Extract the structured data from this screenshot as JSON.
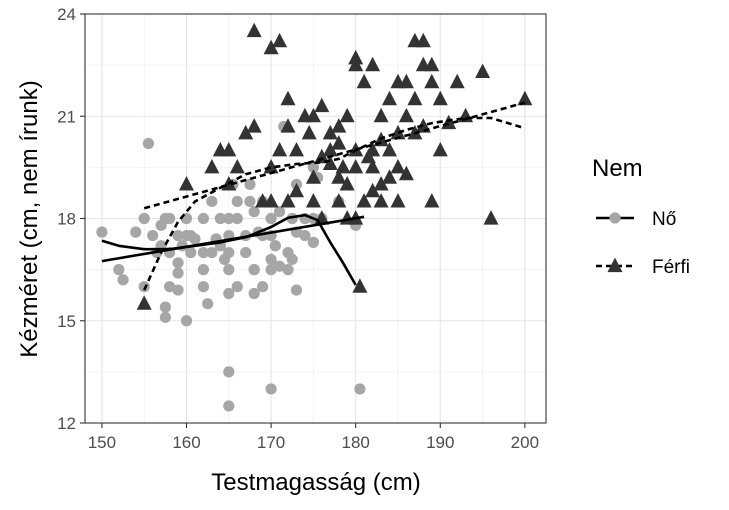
{
  "chart_data": {
    "type": "scatter",
    "xlabel": "Testmagasság (cm)",
    "ylabel": "Kézméret (cm, nem írunk)",
    "xlim": [
      148,
      202.5
    ],
    "ylim": [
      12,
      24
    ],
    "x_ticks": [
      150,
      160,
      170,
      180,
      190,
      200
    ],
    "y_ticks": [
      12,
      15,
      18,
      21,
      24
    ],
    "grid": true,
    "legend": {
      "title": "Nem",
      "position": "right"
    },
    "series": [
      {
        "name": "Nő",
        "marker": "circle",
        "color": "#a6a6a6",
        "line_style": "solid",
        "points": [
          [
            150,
            17.6
          ],
          [
            152,
            16.5
          ],
          [
            152.5,
            16.2
          ],
          [
            154,
            17.6
          ],
          [
            155,
            16
          ],
          [
            155,
            18
          ],
          [
            155.5,
            20.2
          ],
          [
            156,
            17.5
          ],
          [
            156.5,
            17
          ],
          [
            157,
            17.2
          ],
          [
            157,
            17.8
          ],
          [
            157.5,
            15.1
          ],
          [
            157.5,
            15.4
          ],
          [
            157.5,
            18
          ],
          [
            158,
            18
          ],
          [
            158,
            16
          ],
          [
            158,
            17
          ],
          [
            159,
            15.9
          ],
          [
            159,
            16.7
          ],
          [
            159,
            16.4
          ],
          [
            159,
            17.5
          ],
          [
            159.5,
            17.2
          ],
          [
            160,
            15
          ],
          [
            160,
            17.5
          ],
          [
            160,
            18
          ],
          [
            160.5,
            17
          ],
          [
            160.5,
            17.5
          ],
          [
            161,
            17.4
          ],
          [
            162,
            16.5
          ],
          [
            162,
            17
          ],
          [
            162,
            16
          ],
          [
            162,
            18
          ],
          [
            162.5,
            15.5
          ],
          [
            163,
            18.5
          ],
          [
            163,
            17
          ],
          [
            163.5,
            17.4
          ],
          [
            164,
            18
          ],
          [
            164,
            17.2
          ],
          [
            164.5,
            16.8
          ],
          [
            165,
            17
          ],
          [
            165,
            15.8
          ],
          [
            165,
            16.5
          ],
          [
            165,
            18
          ],
          [
            165,
            17.5
          ],
          [
            165,
            13.5
          ],
          [
            165,
            12.5
          ],
          [
            166,
            18.5
          ],
          [
            166,
            16
          ],
          [
            166,
            18
          ],
          [
            167,
            17.5
          ],
          [
            167,
            17
          ],
          [
            167.5,
            19
          ],
          [
            167.5,
            18.5
          ],
          [
            168,
            16.5
          ],
          [
            168,
            16.5
          ],
          [
            168,
            18.2
          ],
          [
            168,
            15.8
          ],
          [
            168.5,
            17.6
          ],
          [
            169,
            17.5
          ],
          [
            169,
            16
          ],
          [
            169,
            18.5
          ],
          [
            170,
            17.5
          ],
          [
            170,
            16.5
          ],
          [
            170,
            18
          ],
          [
            170,
            13
          ],
          [
            170,
            16.8
          ],
          [
            170.5,
            17.2
          ],
          [
            171,
            18.2
          ],
          [
            171,
            16.6
          ],
          [
            172,
            16.5
          ],
          [
            172,
            17
          ],
          [
            172.5,
            16.8
          ],
          [
            172.5,
            18
          ],
          [
            173,
            17.6
          ],
          [
            173,
            15.9
          ],
          [
            173,
            19
          ],
          [
            174,
            18
          ],
          [
            174,
            17.5
          ],
          [
            175,
            18
          ],
          [
            175,
            17.3
          ],
          [
            175,
            19.5
          ],
          [
            176,
            18
          ],
          [
            178,
            18.5
          ],
          [
            180,
            17.8
          ],
          [
            180.5,
            13
          ],
          [
            171.5,
            20.7
          ],
          [
            165.5,
            19
          ],
          [
            175.5,
            19.2
          ]
        ],
        "trend_linear": [
          [
            150,
            16.75
          ],
          [
            181,
            18.05
          ]
        ],
        "trend_smooth": [
          [
            150,
            17.35
          ],
          [
            152,
            17.2
          ],
          [
            155,
            17.1
          ],
          [
            158,
            17.1
          ],
          [
            161,
            17.2
          ],
          [
            164,
            17.3
          ],
          [
            167,
            17.45
          ],
          [
            170,
            17.75
          ],
          [
            172,
            18.02
          ],
          [
            174,
            18.1
          ],
          [
            175.5,
            17.95
          ],
          [
            177,
            17.3
          ],
          [
            178.5,
            16.7
          ],
          [
            180,
            16.05
          ]
        ]
      },
      {
        "name": "Férfi",
        "marker": "triangle",
        "color": "#333333",
        "line_style": "dashed",
        "points": [
          [
            155,
            15.5
          ],
          [
            160,
            19
          ],
          [
            163,
            19.5
          ],
          [
            164,
            20
          ],
          [
            165,
            20
          ],
          [
            165,
            19
          ],
          [
            166,
            19.5
          ],
          [
            167,
            20.5
          ],
          [
            168,
            23.5
          ],
          [
            168,
            20.7
          ],
          [
            169,
            18.5
          ],
          [
            170,
            23
          ],
          [
            170,
            19.5
          ],
          [
            170,
            18.5
          ],
          [
            171,
            23.2
          ],
          [
            171,
            20
          ],
          [
            172,
            20.7
          ],
          [
            172,
            18.5
          ],
          [
            172,
            21.5
          ],
          [
            173,
            20
          ],
          [
            173,
            18.8
          ],
          [
            174,
            21
          ],
          [
            175,
            21
          ],
          [
            175,
            19.2
          ],
          [
            175,
            18.5
          ],
          [
            176,
            21.3
          ],
          [
            176,
            19.8
          ],
          [
            176,
            18
          ],
          [
            177,
            20.5
          ],
          [
            177,
            20
          ],
          [
            177,
            19.6
          ],
          [
            178,
            20.7
          ],
          [
            178,
            19.2
          ],
          [
            178,
            18.5
          ],
          [
            178.5,
            19.5
          ],
          [
            179,
            21
          ],
          [
            179,
            19
          ],
          [
            179,
            18
          ],
          [
            180,
            22.7
          ],
          [
            180,
            22.5
          ],
          [
            180,
            20
          ],
          [
            180,
            19.5
          ],
          [
            180,
            18
          ],
          [
            180.5,
            16
          ],
          [
            181,
            18.5
          ],
          [
            181,
            22
          ],
          [
            182,
            22.5
          ],
          [
            182,
            20
          ],
          [
            182,
            19.5
          ],
          [
            182,
            18.8
          ],
          [
            183,
            21
          ],
          [
            183,
            20.3
          ],
          [
            183,
            19
          ],
          [
            184,
            21.5
          ],
          [
            184,
            20
          ],
          [
            185,
            22
          ],
          [
            185,
            20.5
          ],
          [
            185,
            19.5
          ],
          [
            185,
            18.5
          ],
          [
            186,
            22
          ],
          [
            186,
            21
          ],
          [
            187,
            23.2
          ],
          [
            187,
            21.5
          ],
          [
            187,
            20.5
          ],
          [
            188,
            23.2
          ],
          [
            188,
            22.5
          ],
          [
            188,
            20.7
          ],
          [
            189,
            22.5
          ],
          [
            189,
            22
          ],
          [
            189,
            18.5
          ],
          [
            190,
            21.5
          ],
          [
            190,
            20
          ],
          [
            191,
            20.8
          ],
          [
            192,
            22
          ],
          [
            193,
            21
          ],
          [
            195,
            22.3
          ],
          [
            196,
            18
          ],
          [
            200,
            21.5
          ],
          [
            178,
            20.2
          ],
          [
            184,
            19.2
          ],
          [
            186,
            19.3
          ],
          [
            174.5,
            20.5
          ],
          [
            181.5,
            19.8
          ],
          [
            183,
            18.5
          ]
        ],
        "trend_linear": [
          [
            155,
            18.3
          ],
          [
            200,
            21.4
          ]
        ],
        "trend_smooth": [
          [
            155,
            15.9
          ],
          [
            157,
            17
          ],
          [
            159,
            17.9
          ],
          [
            161,
            18.5
          ],
          [
            164,
            18.9
          ],
          [
            167,
            19.3
          ],
          [
            170,
            19.5
          ],
          [
            173,
            19.6
          ],
          [
            176,
            19.65
          ],
          [
            178,
            19.75
          ],
          [
            180,
            20
          ],
          [
            183,
            20.35
          ],
          [
            186,
            20.6
          ],
          [
            189,
            20.8
          ],
          [
            193,
            20.95
          ],
          [
            196,
            20.95
          ],
          [
            200,
            20.65
          ]
        ]
      }
    ]
  }
}
